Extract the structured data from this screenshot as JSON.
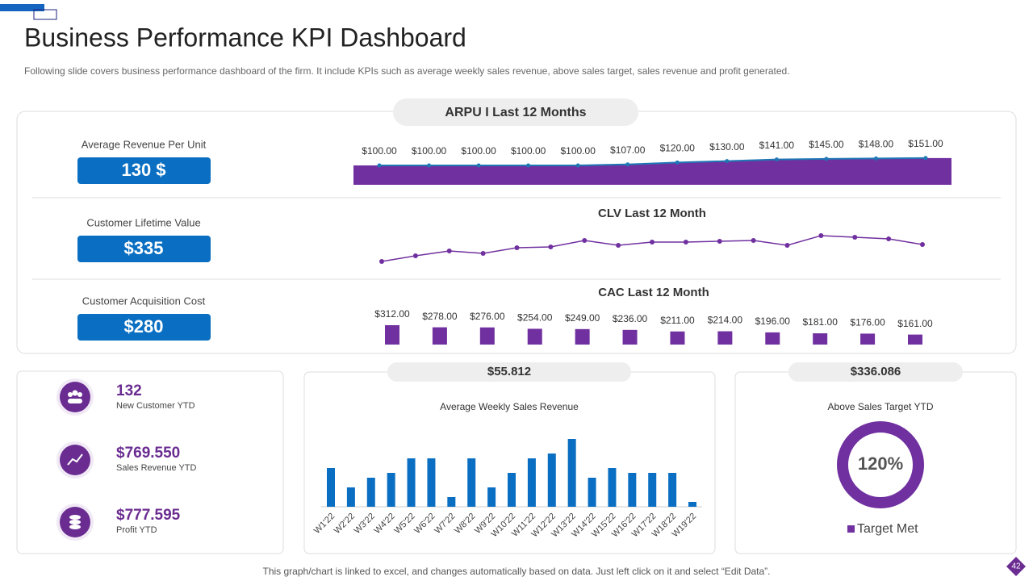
{
  "title": "Business Performance KPI Dashboard",
  "subtitle": "Following slide covers business performance dashboard of the firm. It include KPIs such as average  weekly sales revenue,  above sales target, sales revenue  and profit generated.",
  "kpis": [
    {
      "label": "Average  Revenue  Per Unit",
      "value": "130 $"
    },
    {
      "label": "Customer Lifetime Value",
      "value": "$335"
    },
    {
      "label": "Customer Acquisition Cost",
      "value": "$280"
    }
  ],
  "stats": [
    {
      "value": "132",
      "label": "New Customer YTD"
    },
    {
      "value": "$769.550",
      "label": "Sales Revenue YTD"
    },
    {
      "value": "$777.595",
      "label": "Profit YTD"
    }
  ],
  "footer": "This graph/chart is linked to excel,  and changes automatically based on data. Just left click on it and select “Edit Data”.",
  "page_number": "42",
  "chart_data": [
    {
      "type": "area",
      "title": "ARPU I Last 12 Months",
      "color": "#7030a0",
      "line_color": "#1f77b4",
      "values": [
        100,
        100,
        100,
        100,
        100,
        107,
        120,
        130,
        141,
        145,
        148,
        151
      ],
      "value_labels": [
        "$100.00",
        "$100.00",
        "$100.00",
        "$100.00",
        "$100.00",
        "$107.00",
        "$120.00",
        "$130.00",
        "$141.00",
        "$145.00",
        "$148.00",
        "$151.00"
      ]
    },
    {
      "type": "line",
      "title": "CLV Last 12 Month",
      "color": "#7030a0",
      "values": [
        16,
        23,
        29,
        26,
        33,
        34,
        42,
        36,
        40,
        40,
        41,
        42,
        36,
        48,
        46,
        44,
        37
      ]
    },
    {
      "type": "bar",
      "title": "CAC Last 12 Month",
      "color": "#7030a0",
      "values": [
        312,
        278,
        276,
        254,
        249,
        236,
        211,
        214,
        196,
        181,
        176,
        161
      ],
      "value_labels": [
        "$312.00",
        "$278.00",
        "$276.00",
        "$254.00",
        "$249.00",
        "$236.00",
        "$211.00",
        "$214.00",
        "$196.00",
        "$181.00",
        "$176.00",
        "$161.00"
      ]
    },
    {
      "type": "bar",
      "header": "$55.812",
      "title": "Average  Weekly Sales Revenue",
      "color": "#0a6fc2",
      "categories": [
        "W1'22",
        "W2'22",
        "W3'22",
        "W4'22",
        "W5'22",
        "W6'22",
        "W7'22",
        "W8'22",
        "W9'22",
        "W10'22",
        "W11'22",
        "W12'22",
        "W13'22",
        "W14'22",
        "W15'22",
        "W16'22",
        "W17'22",
        "W18'22",
        "W19'22"
      ],
      "values": [
        8,
        4,
        6,
        7,
        10,
        10,
        2,
        10,
        4,
        7,
        10,
        11,
        14,
        6,
        8,
        7,
        7,
        7,
        1
      ]
    },
    {
      "type": "donut",
      "header": "$336.086",
      "title": "Above Sales Target YTD",
      "color": "#7030a0",
      "categories": [
        "Target Met"
      ],
      "values": [
        120
      ],
      "value_labels": [
        "120%"
      ]
    }
  ]
}
